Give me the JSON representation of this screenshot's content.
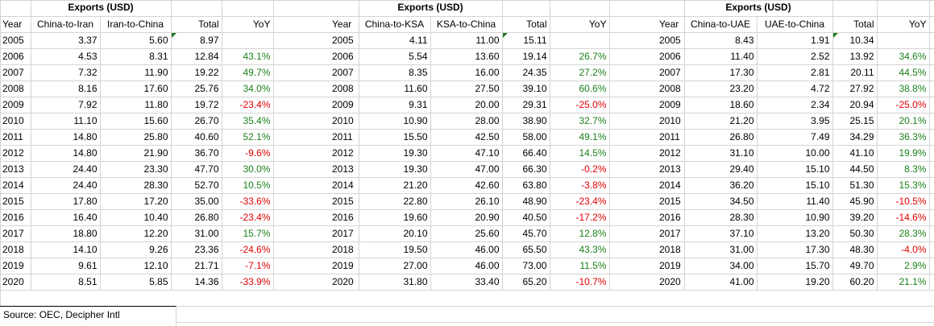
{
  "tables": [
    {
      "title": "Exports (USD)",
      "headers": [
        "Year",
        "China-to-Iran",
        "Iran-to-China",
        "Total",
        "YoY"
      ],
      "rows": [
        [
          "2005",
          "3.37",
          "5.60",
          "8.97",
          ""
        ],
        [
          "2006",
          "4.53",
          "8.31",
          "12.84",
          "43.1%"
        ],
        [
          "2007",
          "7.32",
          "11.90",
          "19.22",
          "49.7%"
        ],
        [
          "2008",
          "8.16",
          "17.60",
          "25.76",
          "34.0%"
        ],
        [
          "2009",
          "7.92",
          "11.80",
          "19.72",
          "-23.4%"
        ],
        [
          "2010",
          "11.10",
          "15.60",
          "26.70",
          "35.4%"
        ],
        [
          "2011",
          "14.80",
          "25.80",
          "40.60",
          "52.1%"
        ],
        [
          "2012",
          "14.80",
          "21.90",
          "36.70",
          "-9.6%"
        ],
        [
          "2013",
          "24.40",
          "23.30",
          "47.70",
          "30.0%"
        ],
        [
          "2014",
          "24.40",
          "28.30",
          "52.70",
          "10.5%"
        ],
        [
          "2015",
          "17.80",
          "17.20",
          "35.00",
          "-33.6%"
        ],
        [
          "2016",
          "16.40",
          "10.40",
          "26.80",
          "-23.4%"
        ],
        [
          "2017",
          "18.80",
          "12.20",
          "31.00",
          "15.7%"
        ],
        [
          "2018",
          "14.10",
          "9.26",
          "23.36",
          "-24.6%"
        ],
        [
          "2019",
          "9.61",
          "12.10",
          "21.71",
          "-7.1%"
        ],
        [
          "2020",
          "8.51",
          "5.85",
          "14.36",
          "-33.9%"
        ]
      ]
    },
    {
      "title": "Exports (USD)",
      "headers": [
        "Year",
        "China-to-KSA",
        "KSA-to-China",
        "Total",
        "YoY"
      ],
      "rows": [
        [
          "2005",
          "4.11",
          "11.00",
          "15.11",
          ""
        ],
        [
          "2006",
          "5.54",
          "13.60",
          "19.14",
          "26.7%"
        ],
        [
          "2007",
          "8.35",
          "16.00",
          "24.35",
          "27.2%"
        ],
        [
          "2008",
          "11.60",
          "27.50",
          "39.10",
          "60.6%"
        ],
        [
          "2009",
          "9.31",
          "20.00",
          "29.31",
          "-25.0%"
        ],
        [
          "2010",
          "10.90",
          "28.00",
          "38.90",
          "32.7%"
        ],
        [
          "2011",
          "15.50",
          "42.50",
          "58.00",
          "49.1%"
        ],
        [
          "2012",
          "19.30",
          "47.10",
          "66.40",
          "14.5%"
        ],
        [
          "2013",
          "19.30",
          "47.00",
          "66.30",
          "-0.2%"
        ],
        [
          "2014",
          "21.20",
          "42.60",
          "63.80",
          "-3.8%"
        ],
        [
          "2015",
          "22.80",
          "26.10",
          "48.90",
          "-23.4%"
        ],
        [
          "2016",
          "19.60",
          "20.90",
          "40.50",
          "-17.2%"
        ],
        [
          "2017",
          "20.10",
          "25.60",
          "45.70",
          "12.8%"
        ],
        [
          "2018",
          "19.50",
          "46.00",
          "65.50",
          "43.3%"
        ],
        [
          "2019",
          "27.00",
          "46.00",
          "73.00",
          "11.5%"
        ],
        [
          "2020",
          "31.80",
          "33.40",
          "65.20",
          "-10.7%"
        ]
      ]
    },
    {
      "title": "Exports (USD)",
      "headers": [
        "Year",
        "China-to-UAE",
        "UAE-to-China",
        "Total",
        "YoY"
      ],
      "rows": [
        [
          "2005",
          "8.43",
          "1.91",
          "10.34",
          ""
        ],
        [
          "2006",
          "11.40",
          "2.52",
          "13.92",
          "34.6%"
        ],
        [
          "2007",
          "17.30",
          "2.81",
          "20.11",
          "44.5%"
        ],
        [
          "2008",
          "23.20",
          "4.72",
          "27.92",
          "38.8%"
        ],
        [
          "2009",
          "18.60",
          "2.34",
          "20.94",
          "-25.0%"
        ],
        [
          "2010",
          "21.20",
          "3.95",
          "25.15",
          "20.1%"
        ],
        [
          "2011",
          "26.80",
          "7.49",
          "34.29",
          "36.3%"
        ],
        [
          "2012",
          "31.10",
          "10.00",
          "41.10",
          "19.9%"
        ],
        [
          "2013",
          "29.40",
          "15.10",
          "44.50",
          "8.3%"
        ],
        [
          "2014",
          "36.20",
          "15.10",
          "51.30",
          "15.3%"
        ],
        [
          "2015",
          "34.50",
          "11.40",
          "45.90",
          "-10.5%"
        ],
        [
          "2016",
          "28.30",
          "10.90",
          "39.20",
          "-14.6%"
        ],
        [
          "2017",
          "37.10",
          "13.20",
          "50.30",
          "28.3%"
        ],
        [
          "2018",
          "31.00",
          "17.30",
          "48.30",
          "-4.0%"
        ],
        [
          "2019",
          "34.00",
          "15.70",
          "49.70",
          "2.9%"
        ],
        [
          "2020",
          "41.00",
          "19.20",
          "60.20",
          "21.1%"
        ]
      ]
    }
  ],
  "source": "Source: OEC, Decipher Intl",
  "colors": {
    "positive": "#1a7f1a",
    "negative": "#e00000",
    "grid": "#d4d4d4"
  }
}
